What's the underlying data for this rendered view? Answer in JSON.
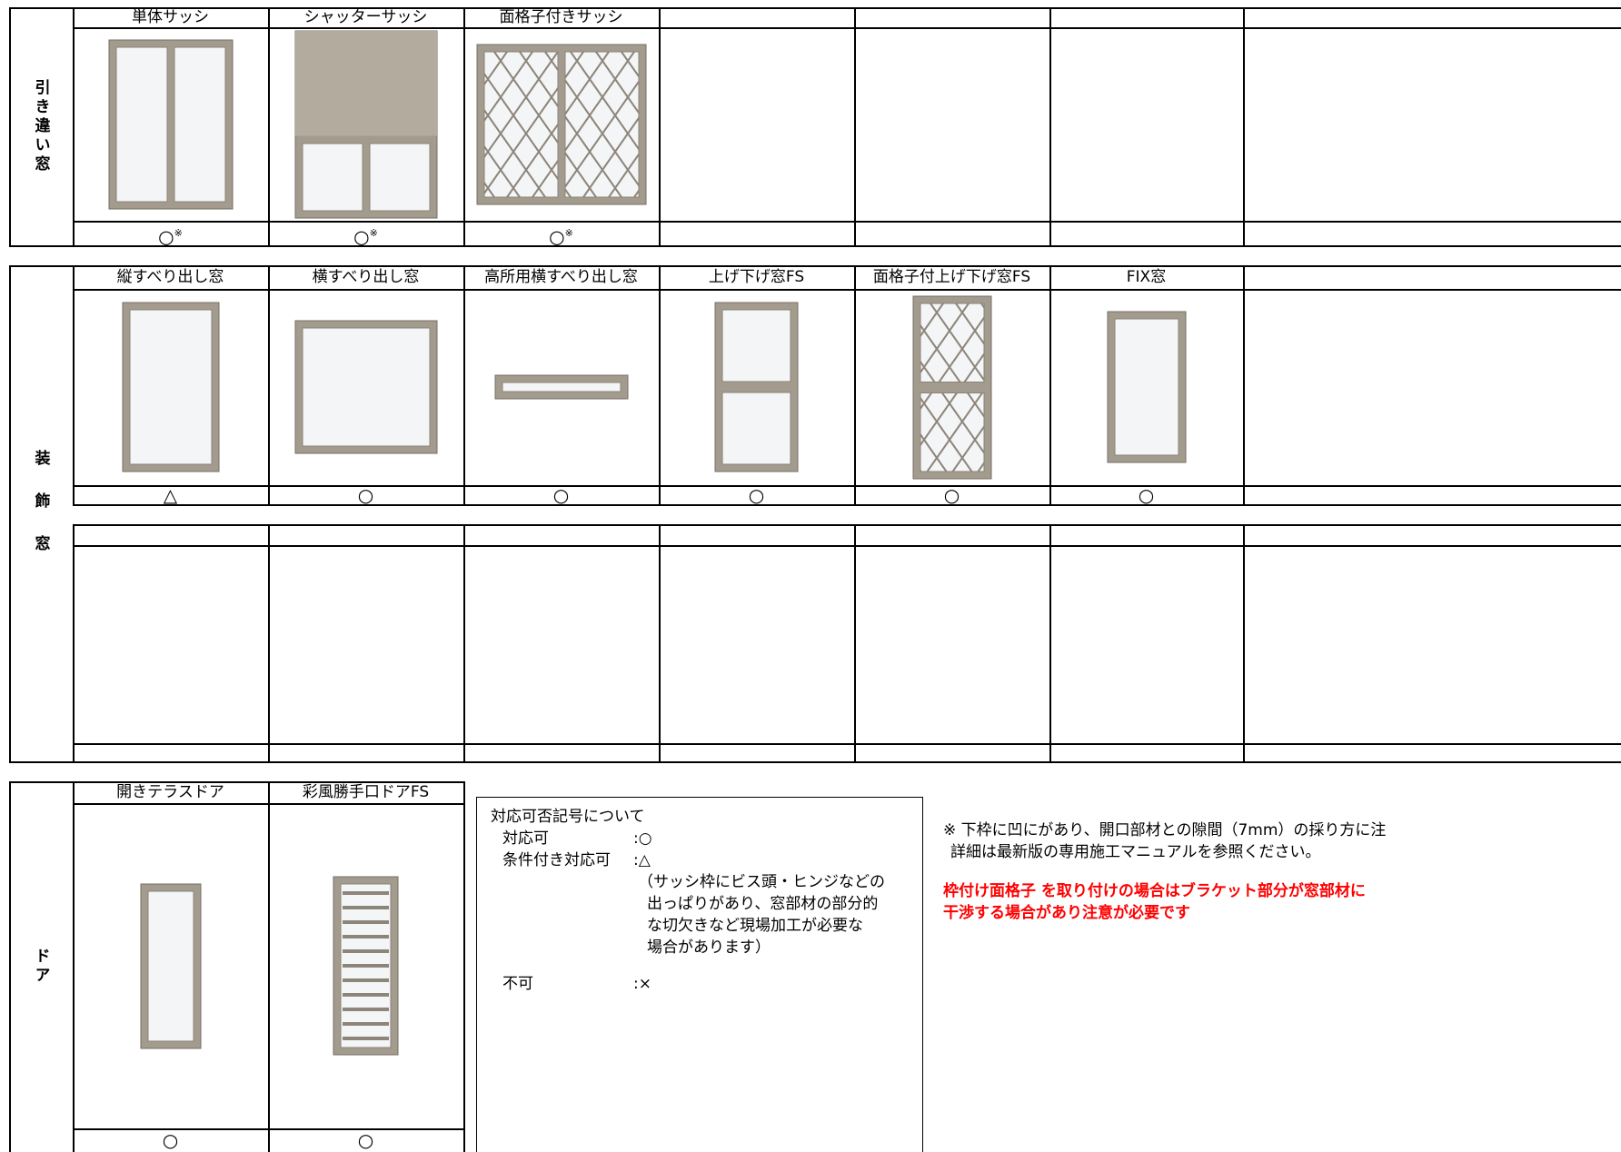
{
  "sections": [
    {
      "label": "引き違い窓",
      "columns": [
        {
          "name": "単体サッシ",
          "mark": "○",
          "note": "※"
        },
        {
          "name": "シャッターサッシ",
          "mark": "○",
          "note": "※"
        },
        {
          "name": "面格子付きサッシ",
          "mark": "○",
          "note": "※"
        }
      ]
    },
    {
      "label": "装飾窓",
      "columns": [
        {
          "name": "縦すべり出し窓",
          "mark": "△"
        },
        {
          "name": "横すべり出し窓",
          "mark": "○"
        },
        {
          "name": "高所用横すべり出し窓",
          "mark": "○"
        },
        {
          "name": "上げ下げ窓FS",
          "mark": "○"
        },
        {
          "name": "面格子付上げ下げ窓FS",
          "mark": "○"
        },
        {
          "name": "FIX窓",
          "mark": "○"
        }
      ]
    },
    {
      "label": "ドア",
      "columns": [
        {
          "name": "開きテラスドア",
          "mark": "○"
        },
        {
          "name": "彩風勝手口ドアFS",
          "mark": "○"
        }
      ]
    }
  ],
  "legend": {
    "title": "対応可否記号について",
    "items": [
      {
        "term": "対応可",
        "symbol": ":○"
      },
      {
        "term": "条件付き対応可",
        "symbol": ":△"
      }
    ],
    "detail": [
      "（サッシ枠にビス頭・ヒンジなどの",
      "出っぱりがあり、窓部材の部分的",
      "な切欠きなど現場加工が必要な",
      "場合があります）"
    ],
    "last": {
      "term": "不可",
      "symbol": ":×"
    }
  },
  "notes": [
    "※ 下枠に凹にがあり、開口部材との隙間（7mm）の採り方に注",
    "詳細は最新版の専用施工マニュアルを参照ください。"
  ],
  "warning": [
    "枠付け面格子 を取り付けの場合はブラケット部分が窓部材に",
    "干渉する場合があり注意が必要です"
  ]
}
